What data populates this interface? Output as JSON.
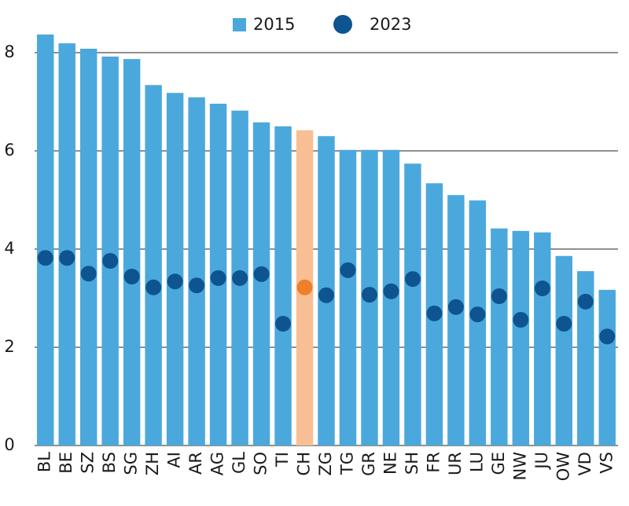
{
  "chart_data": {
    "type": "bar",
    "categories": [
      "BL",
      "BE",
      "SZ",
      "BS",
      "SG",
      "ZH",
      "AI",
      "AR",
      "AG",
      "GL",
      "SO",
      "TI",
      "CH",
      "ZG",
      "TG",
      "GR",
      "NE",
      "SH",
      "FR",
      "UR",
      "LU",
      "GE",
      "NW",
      "JU",
      "OW",
      "VD",
      "VS"
    ],
    "series": [
      {
        "name": "2015",
        "style": "bar",
        "color": "#4ba8dd",
        "values": [
          8.37,
          8.19,
          8.08,
          7.92,
          7.87,
          7.34,
          7.18,
          7.09,
          6.96,
          6.82,
          6.58,
          6.5,
          6.42,
          6.3,
          6.02,
          6.02,
          6.02,
          5.74,
          5.34,
          5.1,
          4.99,
          4.42,
          4.37,
          4.34,
          3.86,
          3.55,
          3.17
        ]
      },
      {
        "name": "2023",
        "style": "dot",
        "color": "#0e5491",
        "values": [
          3.82,
          3.82,
          3.5,
          3.76,
          3.44,
          3.22,
          3.34,
          3.26,
          3.41,
          3.41,
          3.49,
          2.48,
          3.22,
          3.06,
          3.57,
          3.07,
          3.14,
          3.39,
          2.69,
          2.82,
          2.67,
          3.04,
          2.56,
          3.2,
          2.48,
          2.93,
          2.22
        ]
      }
    ],
    "highlight": {
      "index": 12,
      "bar_color": "#f9bf94",
      "dot_color": "#f07f2a"
    },
    "ylim": [
      0,
      8.4
    ],
    "yticks": [
      0,
      2,
      4,
      6,
      8
    ],
    "grid": true
  }
}
